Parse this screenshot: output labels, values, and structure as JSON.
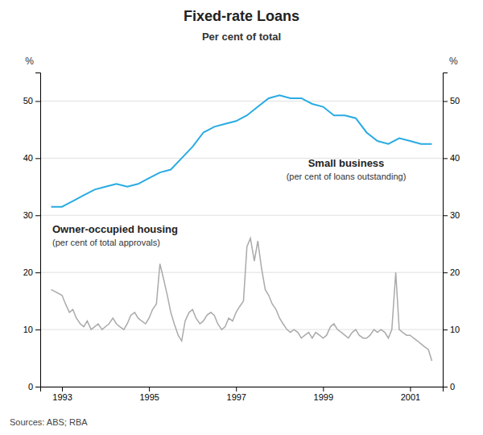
{
  "chart_data": {
    "type": "line",
    "title": "Fixed-rate Loans",
    "subtitle": "Per cent of total",
    "source": "Sources: ABS; RBA",
    "ylabel": "%",
    "y2label": "%",
    "xlim": [
      1992.5,
      2001.75
    ],
    "xticks": [
      1993,
      1995,
      1997,
      1999,
      2001
    ],
    "ylim": [
      0,
      55
    ],
    "yticks": [
      0,
      10,
      20,
      30,
      40,
      50
    ],
    "y2lim": [
      0,
      55
    ],
    "y2ticks": [
      0,
      10,
      20,
      30,
      40,
      50
    ],
    "grid": true,
    "annotations": [
      "(per cent of loans outstanding)",
      "(per cent of total approvals)"
    ],
    "series": [
      {
        "name": "Small business",
        "color": "#29abe2",
        "x": [
          1992.75,
          1993.0,
          1993.25,
          1993.5,
          1993.75,
          1994.0,
          1994.25,
          1994.5,
          1994.75,
          1995.0,
          1995.25,
          1995.5,
          1995.75,
          1996.0,
          1996.25,
          1996.5,
          1996.75,
          1997.0,
          1997.25,
          1997.5,
          1997.75,
          1998.0,
          1998.25,
          1998.5,
          1998.75,
          1999.0,
          1999.25,
          1999.5,
          1999.75,
          2000.0,
          2000.25,
          2000.5,
          2000.75,
          2001.0,
          2001.25,
          2001.5
        ],
        "values": [
          31.5,
          31.5,
          32.5,
          33.5,
          34.5,
          35.0,
          35.5,
          35.0,
          35.5,
          36.5,
          37.5,
          38.0,
          40.0,
          42.0,
          44.5,
          45.5,
          46.0,
          46.5,
          47.5,
          49.0,
          50.5,
          51.0,
          50.5,
          50.5,
          49.5,
          49.0,
          47.5,
          47.5,
          47.0,
          44.5,
          43.0,
          42.5,
          43.5,
          43.0,
          42.5,
          42.5
        ]
      },
      {
        "name": "Owner-occupied housing",
        "color": "#aaaaaa",
        "x": [
          1992.75,
          1993.0,
          1993.08,
          1993.17,
          1993.25,
          1993.33,
          1993.42,
          1993.5,
          1993.58,
          1993.67,
          1993.75,
          1993.83,
          1993.92,
          1994.0,
          1994.08,
          1994.17,
          1994.25,
          1994.33,
          1994.42,
          1994.5,
          1994.58,
          1994.67,
          1994.75,
          1994.83,
          1994.92,
          1995.0,
          1995.08,
          1995.17,
          1995.25,
          1995.33,
          1995.42,
          1995.5,
          1995.58,
          1995.67,
          1995.75,
          1995.83,
          1995.92,
          1996.0,
          1996.08,
          1996.17,
          1996.25,
          1996.33,
          1996.42,
          1996.5,
          1996.58,
          1996.67,
          1996.75,
          1996.83,
          1996.92,
          1997.0,
          1997.08,
          1997.17,
          1997.25,
          1997.33,
          1997.42,
          1997.5,
          1997.58,
          1997.67,
          1997.75,
          1997.83,
          1997.92,
          1998.0,
          1998.08,
          1998.17,
          1998.25,
          1998.33,
          1998.42,
          1998.5,
          1998.58,
          1998.67,
          1998.75,
          1998.83,
          1998.92,
          1999.0,
          1999.08,
          1999.17,
          1999.25,
          1999.33,
          1999.42,
          1999.5,
          1999.58,
          1999.67,
          1999.75,
          1999.83,
          1999.92,
          2000.0,
          2000.08,
          2000.17,
          2000.25,
          2000.33,
          2000.42,
          2000.5,
          2000.58,
          2000.67,
          2000.75,
          2000.83,
          2000.92,
          2001.0,
          2001.08,
          2001.17,
          2001.25,
          2001.33,
          2001.42,
          2001.5
        ],
        "values": [
          17.0,
          16.0,
          14.5,
          13.0,
          13.5,
          12.0,
          11.0,
          10.5,
          11.5,
          10.0,
          10.5,
          11.0,
          10.0,
          10.5,
          11.0,
          12.0,
          11.0,
          10.5,
          10.0,
          11.0,
          12.5,
          13.0,
          12.0,
          11.5,
          11.0,
          12.0,
          13.5,
          14.5,
          21.5,
          19.0,
          16.0,
          13.0,
          11.0,
          9.0,
          8.0,
          11.5,
          13.0,
          13.5,
          12.0,
          11.0,
          11.5,
          12.5,
          13.0,
          12.5,
          11.0,
          10.0,
          10.5,
          12.0,
          11.5,
          13.0,
          14.0,
          15.0,
          24.5,
          26.0,
          22.0,
          25.5,
          21.0,
          17.0,
          16.0,
          14.5,
          13.5,
          12.0,
          11.0,
          10.0,
          9.5,
          10.0,
          9.5,
          8.5,
          9.0,
          9.5,
          8.5,
          9.5,
          9.0,
          8.5,
          9.0,
          10.5,
          11.0,
          10.0,
          9.5,
          9.0,
          8.5,
          9.5,
          10.0,
          9.0,
          8.5,
          8.5,
          9.0,
          10.0,
          9.5,
          10.0,
          9.5,
          8.5,
          10.0,
          20.0,
          10.0,
          9.5,
          9.0,
          9.0,
          8.5,
          8.0,
          7.5,
          7.0,
          6.5,
          4.5
        ]
      }
    ]
  }
}
